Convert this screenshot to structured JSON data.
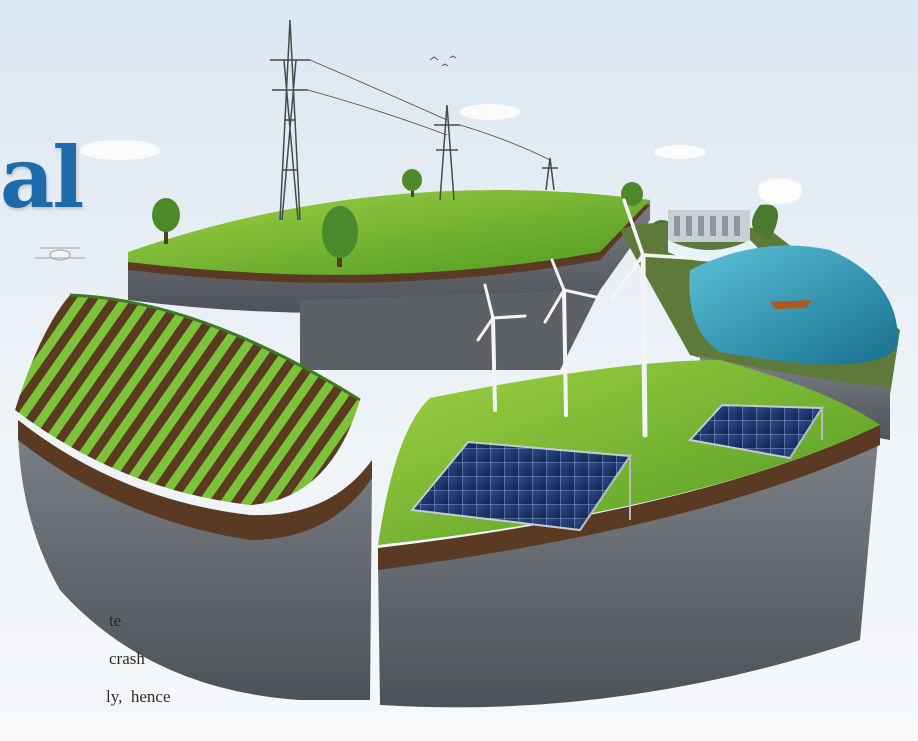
{
  "headline": {
    "fragment": "al"
  },
  "body_text": {
    "line1": "te",
    "line2": "crash",
    "line3": "ly,  hence"
  },
  "palette": {
    "sky": "#dbe7f1",
    "grass": "#6fae2c",
    "soil": "#5a3a22",
    "rock": "#6e7277",
    "water": "#2f94b8",
    "panel": "#1d3466",
    "headline_blue": "#1f6aa8"
  }
}
